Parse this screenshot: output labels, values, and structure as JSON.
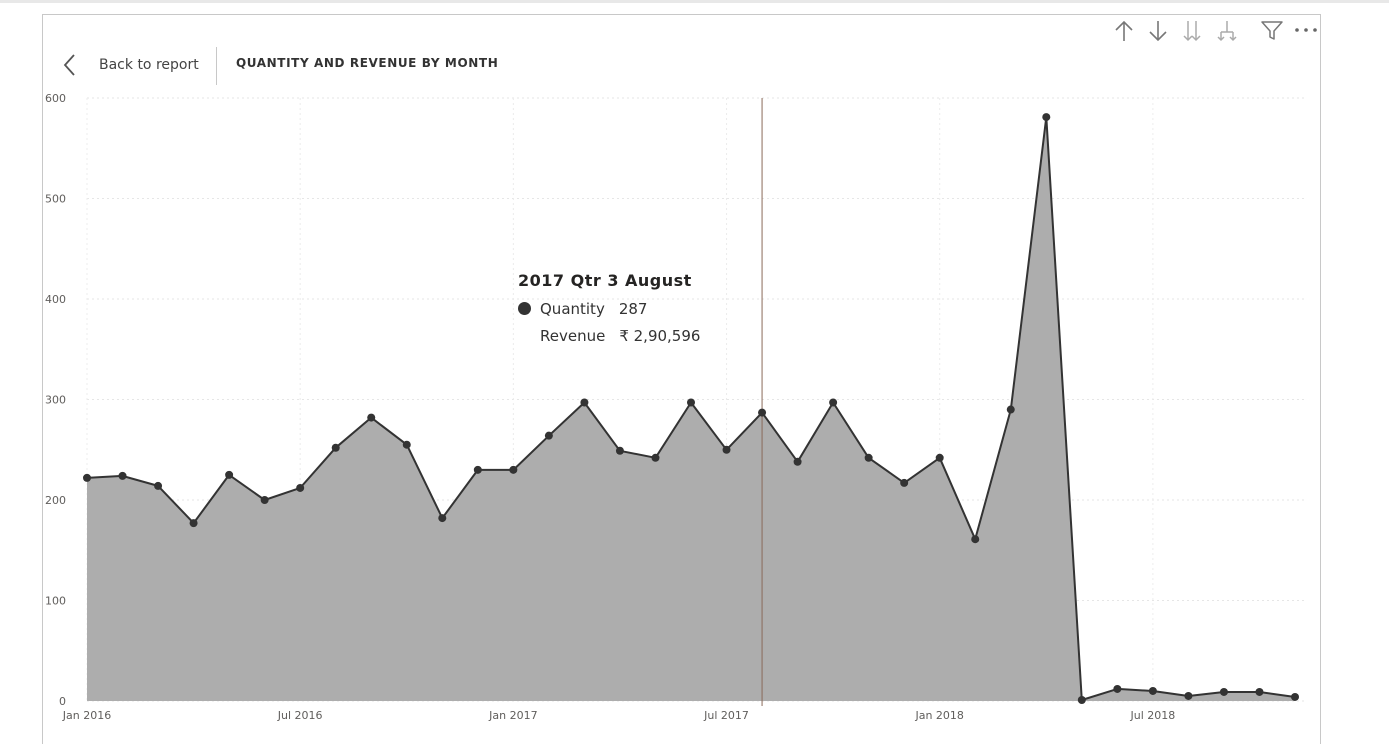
{
  "header": {
    "back_label": "Back to report",
    "visual_title": "QUANTITY AND REVENUE BY MONTH"
  },
  "toolbar": {
    "icons": [
      "arrow-up-icon",
      "arrow-down-icon",
      "double-arrow-down-icon",
      "expand-hierarchy-icon",
      "filter-icon",
      "more-options-icon"
    ]
  },
  "tooltip": {
    "title": "2017 Qtr 3 August",
    "rows": [
      {
        "label": "Quantity",
        "value": "287"
      },
      {
        "label": "Revenue",
        "value": "₹ 2,90,596"
      }
    ]
  },
  "colors": {
    "area_fill": "#adadad",
    "line": "#333333",
    "hover_line": "#8a6a5a"
  },
  "chart_data": {
    "type": "area",
    "series": [
      {
        "name": "Quantity",
        "values": [
          222,
          224,
          214,
          177,
          225,
          200,
          212,
          252,
          282,
          255,
          182,
          230,
          230,
          264,
          297,
          249,
          242,
          297,
          250,
          287,
          238,
          297,
          242,
          217,
          242,
          161,
          290,
          581,
          1,
          12,
          10,
          5,
          9,
          9,
          4
        ]
      }
    ],
    "x_ticks": [
      {
        "index": 0,
        "label": "Jan 2016"
      },
      {
        "index": 6,
        "label": "Jul 2016"
      },
      {
        "index": 12,
        "label": "Jan 2017"
      },
      {
        "index": 18,
        "label": "Jul 2017"
      },
      {
        "index": 24,
        "label": "Jan 2018"
      },
      {
        "index": 30,
        "label": "Jul 2018"
      }
    ],
    "y_ticks": [
      "0",
      "100",
      "200",
      "300",
      "400",
      "500",
      "600"
    ],
    "ylim": [
      0,
      600
    ],
    "highlight_index": 19,
    "grid": true,
    "legend": "none"
  }
}
